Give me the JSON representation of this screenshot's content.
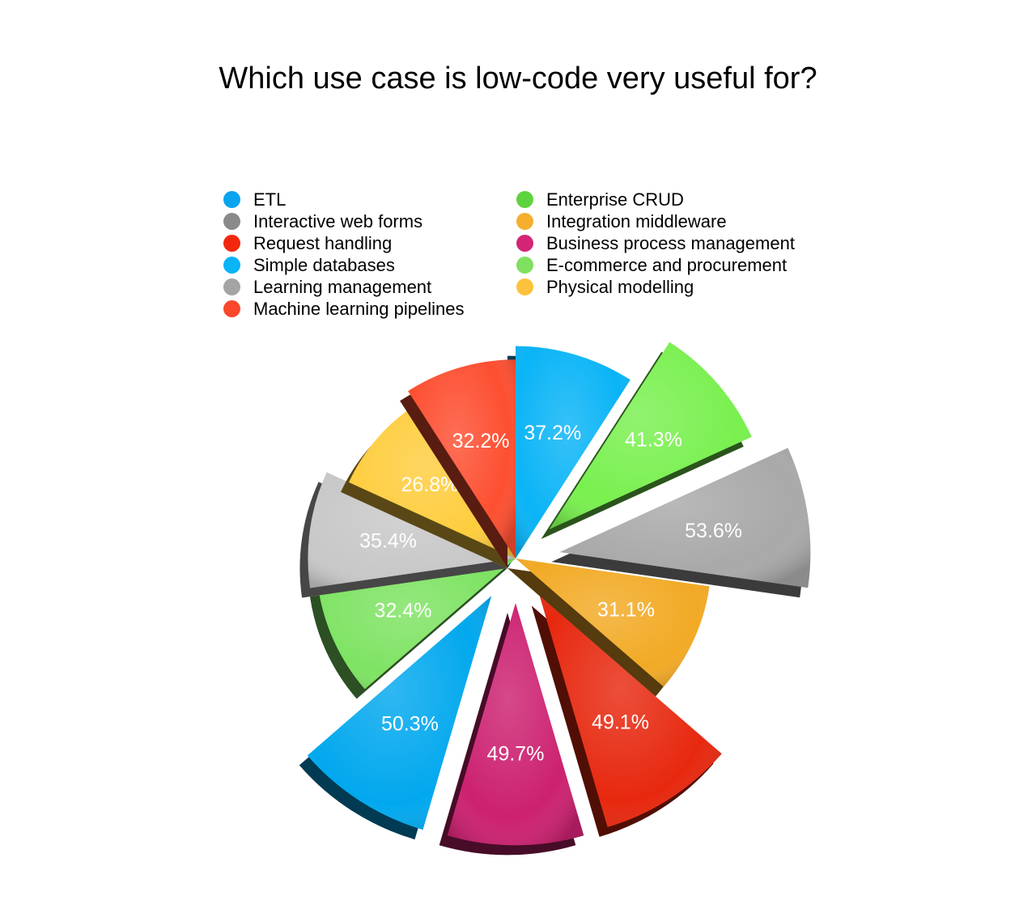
{
  "chart_data": {
    "type": "pie",
    "title": "Which use case is low-code very useful for?",
    "legend_position": "top",
    "slices": [
      {
        "name": "ETL",
        "value": 37.2,
        "label": "37.2%",
        "color": "#0ab4f6",
        "exploded": false
      },
      {
        "name": "Enterprise CRUD",
        "value": 41.3,
        "label": "41.3%",
        "color": "#79f04f",
        "exploded": true
      },
      {
        "name": "Interactive web forms",
        "value": 53.6,
        "label": "53.6%",
        "color": "#a9a9a9",
        "exploded": true
      },
      {
        "name": "Integration middleware",
        "value": 31.1,
        "label": "31.1%",
        "color": "#f2aa25",
        "exploded": false
      },
      {
        "name": "Request handling",
        "value": 49.1,
        "label": "49.1%",
        "color": "#e7280f",
        "exploded": true
      },
      {
        "name": "Business process management",
        "value": 49.7,
        "label": "49.7%",
        "color": "#cc2170",
        "exploded": true
      },
      {
        "name": "Simple databases",
        "value": 50.3,
        "label": "50.3%",
        "color": "#02a8ee",
        "exploded": true
      },
      {
        "name": "E-commerce and procurement",
        "value": 32.4,
        "label": "32.4%",
        "color": "#7ee363",
        "exploded": false
      },
      {
        "name": "Learning management",
        "value": 35.4,
        "label": "35.4%",
        "color": "#c8c8c8",
        "exploded": false
      },
      {
        "name": "Physical modelling",
        "value": 26.8,
        "label": "26.8%",
        "color": "#fecd3e",
        "exploded": false
      },
      {
        "name": "Machine learning pipelines",
        "value": 32.2,
        "label": "32.2%",
        "color": "#fd4f31",
        "exploded": false
      }
    ],
    "legend": [
      {
        "name": "ETL",
        "color": "#0aa4ef"
      },
      {
        "name": "Interactive web forms",
        "color": "#8a8a8a"
      },
      {
        "name": "Request handling",
        "color": "#f2280e"
      },
      {
        "name": "Simple databases",
        "color": "#0ab4f6"
      },
      {
        "name": "Learning management",
        "color": "#a4a4a4"
      },
      {
        "name": "Machine learning pipelines",
        "color": "#f9472b"
      },
      {
        "name": "Enterprise CRUD",
        "color": "#5fd33f"
      },
      {
        "name": "Integration middleware",
        "color": "#f6ae2e"
      },
      {
        "name": "Business process management",
        "color": "#d42477"
      },
      {
        "name": "E-commerce and procurement",
        "color": "#7fe060"
      },
      {
        "name": "Physical modelling",
        "color": "#fdc23b"
      }
    ]
  }
}
